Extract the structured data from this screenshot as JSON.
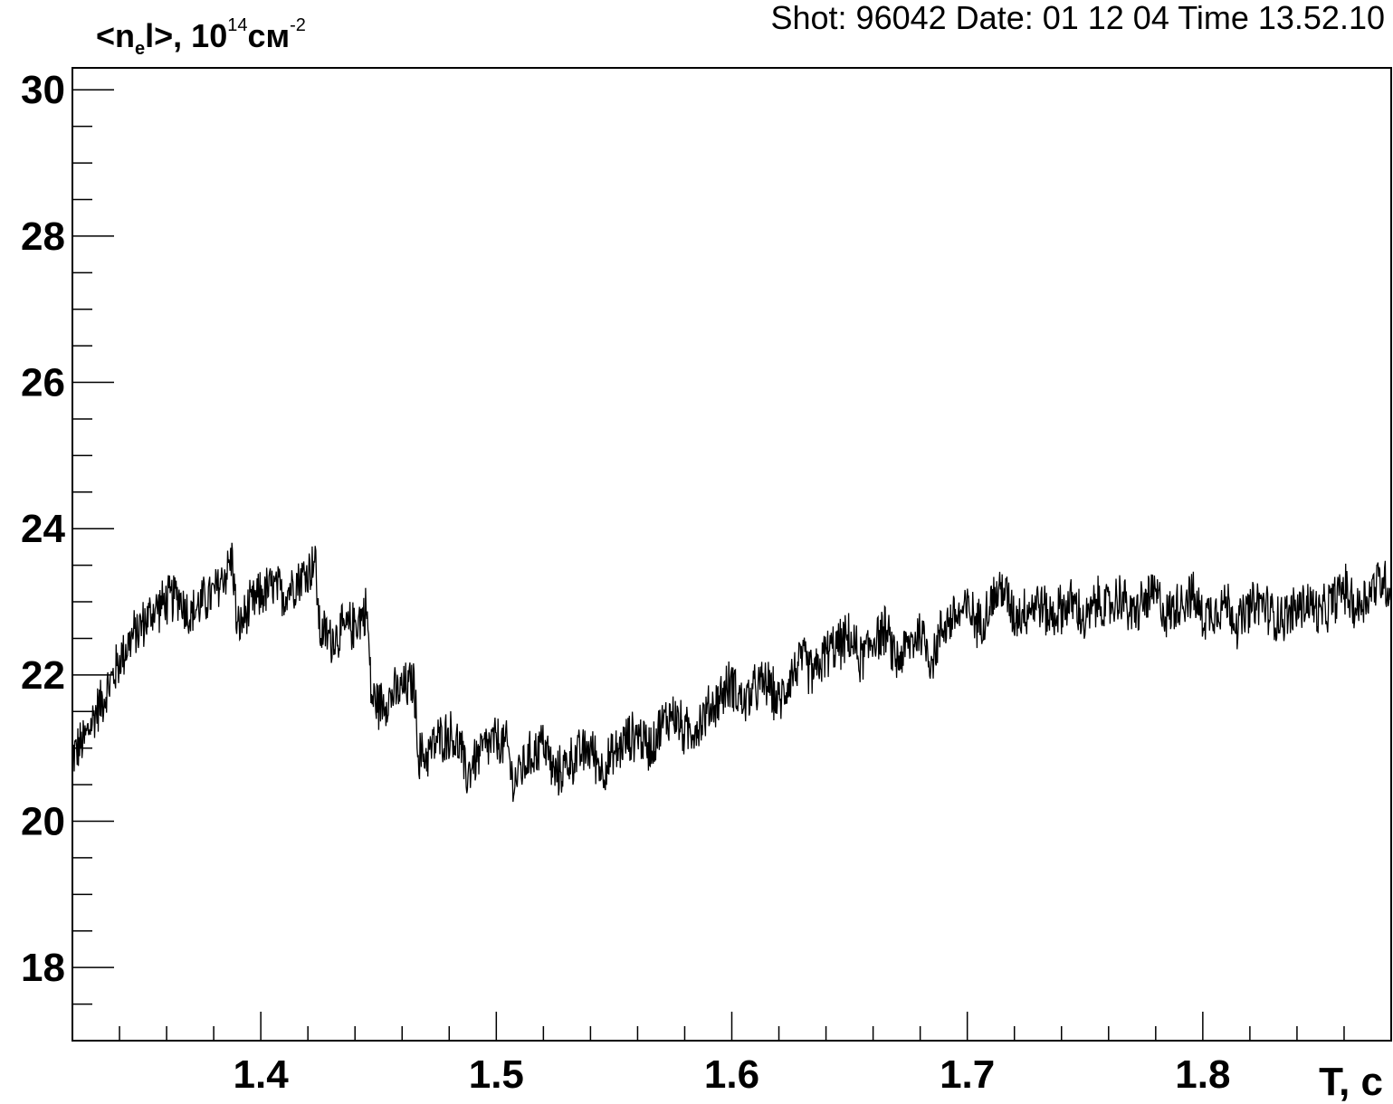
{
  "header": {
    "info": "Shot: 96042  Date: 01 12 04  Time 13.52.10"
  },
  "chart_data": {
    "type": "line",
    "ylabel": {
      "base": "<n",
      "sub": "e",
      "mid": "l>, 10",
      "sup1": "14",
      "unit": "см",
      "sup2": "-2"
    },
    "xlabel": "T, c",
    "xlim": [
      1.32,
      1.88
    ],
    "ylim": [
      17.0,
      30.3
    ],
    "xticks": [
      "1.4",
      "1.5",
      "1.6",
      "1.7",
      "1.8"
    ],
    "yticks": [
      "18",
      "20",
      "22",
      "24",
      "26",
      "28",
      "30"
    ],
    "grid": false,
    "series": [
      {
        "color": "#000000",
        "x": [
          1.32,
          1.325,
          1.33,
          1.335,
          1.34,
          1.345,
          1.35,
          1.355,
          1.36,
          1.365,
          1.37,
          1.375,
          1.38,
          1.385,
          1.388,
          1.39,
          1.395,
          1.4,
          1.405,
          1.41,
          1.415,
          1.42,
          1.423,
          1.425,
          1.43,
          1.435,
          1.44,
          1.445,
          1.447,
          1.45,
          1.455,
          1.46,
          1.465,
          1.467,
          1.47,
          1.475,
          1.48,
          1.485,
          1.487,
          1.49,
          1.495,
          1.5,
          1.505,
          1.507,
          1.51,
          1.515,
          1.52,
          1.525,
          1.53,
          1.535,
          1.54,
          1.545,
          1.55,
          1.555,
          1.56,
          1.565,
          1.57,
          1.575,
          1.58,
          1.585,
          1.59,
          1.595,
          1.6,
          1.605,
          1.61,
          1.615,
          1.62,
          1.625,
          1.63,
          1.635,
          1.64,
          1.645,
          1.65,
          1.655,
          1.66,
          1.665,
          1.67,
          1.675,
          1.68,
          1.685,
          1.69,
          1.695,
          1.7,
          1.705,
          1.71,
          1.715,
          1.72,
          1.725,
          1.73,
          1.735,
          1.74,
          1.745,
          1.75,
          1.755,
          1.76,
          1.765,
          1.77,
          1.775,
          1.78,
          1.785,
          1.79,
          1.795,
          1.8,
          1.805,
          1.81,
          1.815,
          1.82,
          1.825,
          1.83,
          1.835,
          1.84,
          1.845,
          1.85,
          1.855,
          1.86,
          1.865,
          1.87,
          1.875,
          1.88
        ],
        "y": [
          20.9,
          21.1,
          21.5,
          21.8,
          22.2,
          22.5,
          22.7,
          22.9,
          23.0,
          23.1,
          22.8,
          23.0,
          23.1,
          23.4,
          23.6,
          22.6,
          22.9,
          23.1,
          23.2,
          23.1,
          23.3,
          23.4,
          23.6,
          22.6,
          22.5,
          22.6,
          22.7,
          22.9,
          21.7,
          21.6,
          21.7,
          21.8,
          21.9,
          20.9,
          20.9,
          21.1,
          21.2,
          21.0,
          20.6,
          20.8,
          21.0,
          21.1,
          21.0,
          20.5,
          20.7,
          20.9,
          21.1,
          20.6,
          20.8,
          20.9,
          21.0,
          20.7,
          20.9,
          21.1,
          21.2,
          21.0,
          21.3,
          21.5,
          21.2,
          21.3,
          21.5,
          21.7,
          21.9,
          21.6,
          21.8,
          21.9,
          21.6,
          22.0,
          22.2,
          22.0,
          22.3,
          22.4,
          22.5,
          22.2,
          22.5,
          22.6,
          22.2,
          22.4,
          22.6,
          22.2,
          22.7,
          22.8,
          22.9,
          22.7,
          23.0,
          23.2,
          22.8,
          22.9,
          23.0,
          22.8,
          22.9,
          23.0,
          22.7,
          23.0,
          22.9,
          23.1,
          22.8,
          23.0,
          23.1,
          22.8,
          23.0,
          23.1,
          22.8,
          22.9,
          23.0,
          22.7,
          22.9,
          23.0,
          22.8,
          22.8,
          22.9,
          23.0,
          22.8,
          23.0,
          23.2,
          22.9,
          23.1,
          23.3,
          23.2
        ],
        "noise_amplitude": 0.4
      }
    ]
  }
}
